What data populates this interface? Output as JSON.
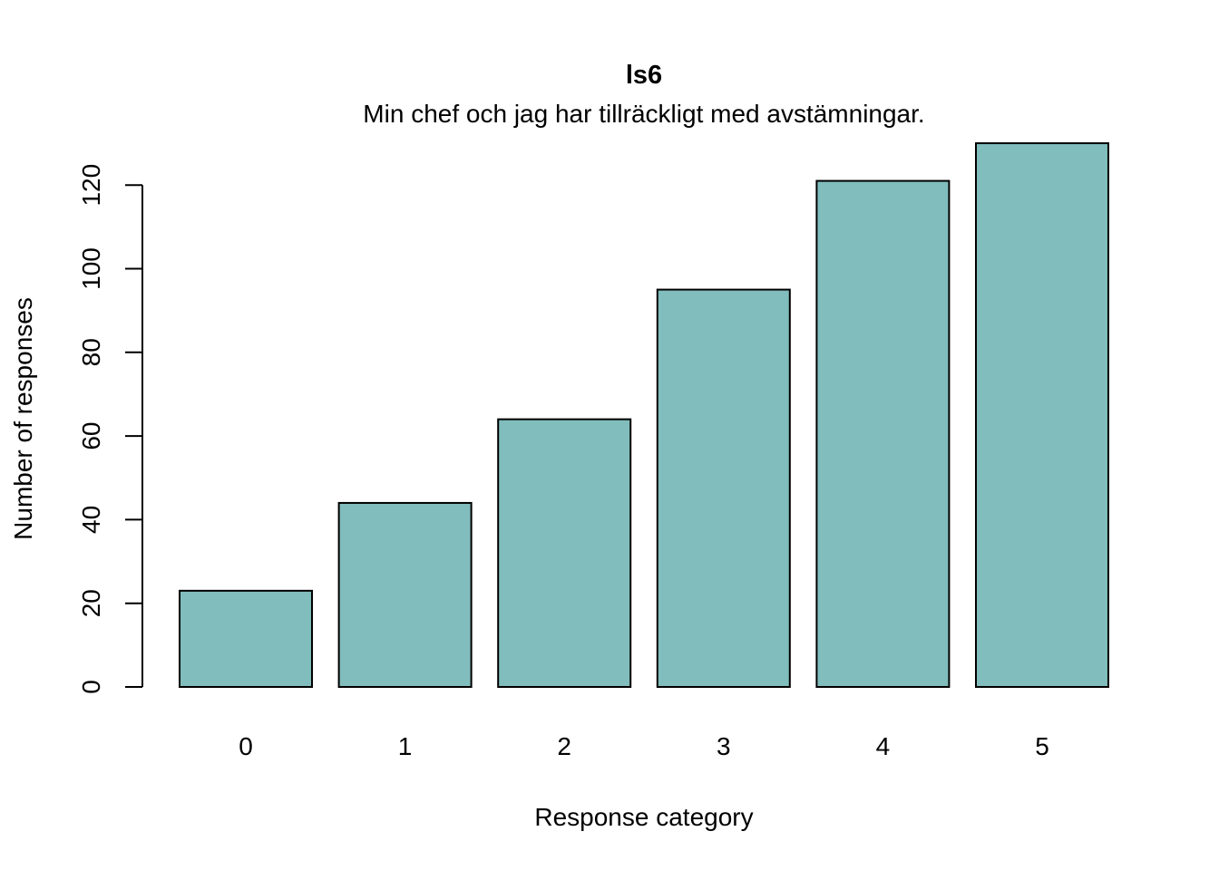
{
  "chart_data": {
    "type": "bar",
    "title": "ls6",
    "subtitle": "Min chef och jag har tillräckligt med avstämningar.",
    "xlabel": "Response category",
    "ylabel": "Number of responses",
    "categories": [
      "0",
      "1",
      "2",
      "3",
      "4",
      "5"
    ],
    "values": [
      23,
      44,
      64,
      95,
      121,
      130
    ],
    "ylim": [
      0,
      130
    ],
    "yticks": [
      0,
      20,
      40,
      60,
      80,
      100,
      120
    ],
    "bar_color": "#80bdbc",
    "grid": false,
    "legend": "none"
  }
}
